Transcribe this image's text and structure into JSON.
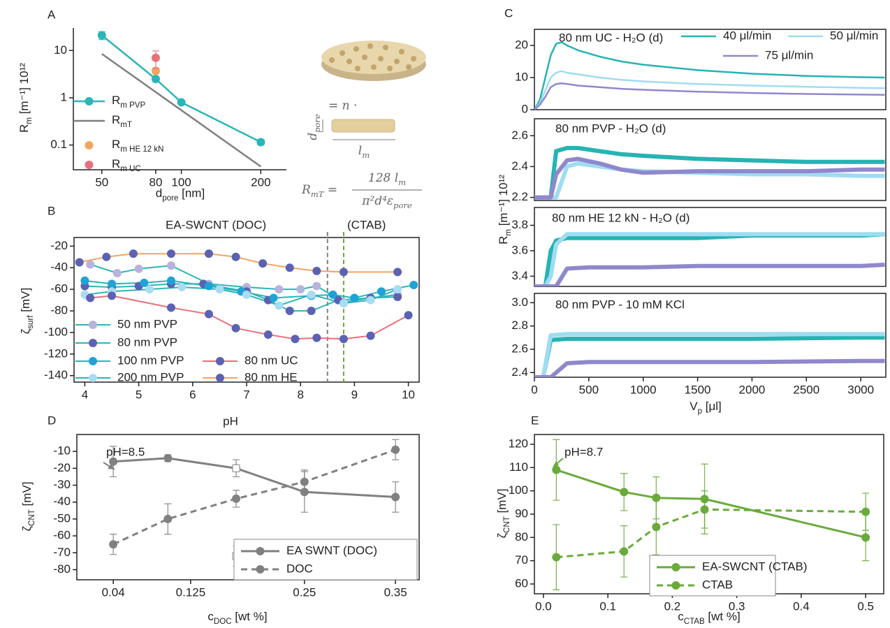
{
  "chart_data": [
    {
      "type": "line",
      "label": "A",
      "xlabel": [
        "d",
        "pore",
        " [nm]"
      ],
      "ylabel": [
        "R",
        "m",
        " [m⁻¹] 10¹²"
      ],
      "xlog": true,
      "ylog": true,
      "xlim": [
        39,
        250
      ],
      "ylim": [
        0.03,
        30
      ],
      "xticks": [
        50,
        80,
        100,
        200
      ],
      "yticks": [
        0.1,
        1,
        10
      ],
      "series": [
        {
          "name": [
            "R",
            "m PVP"
          ],
          "color": "#2bb5b8",
          "marker": "circle",
          "x": [
            50,
            80,
            100,
            200
          ],
          "values": [
            21,
            2.5,
            0.8,
            0.115
          ],
          "errors": [
            4,
            0.3,
            0.08,
            0.015
          ]
        },
        {
          "name": [
            "R",
            "mT"
          ],
          "color": "#7f7f7f",
          "x": [
            50,
            200
          ],
          "values": [
            8.5,
            0.035
          ]
        },
        {
          "name": [
            "R",
            "m HE 12 kN"
          ],
          "color": "#f4a460",
          "marker": "circle",
          "line": false,
          "x": [
            80
          ],
          "values": [
            3.7
          ],
          "errors": [
            0.5
          ]
        },
        {
          "name": [
            "R",
            "m UC"
          ],
          "color": "#e9707a",
          "marker": "circle",
          "line": false,
          "x": [
            80
          ],
          "values": [
            7
          ],
          "errors": [
            2.8
          ]
        }
      ]
    },
    {
      "type": "line",
      "label": "B",
      "xlabel": "pH",
      "ylabel": [
        "ζ",
        "surf",
        " [mV]"
      ],
      "xlim": [
        3.8,
        10.2
      ],
      "ylim": [
        -146,
        -12
      ],
      "xticks": [
        4,
        5,
        6,
        7,
        8,
        9,
        10
      ],
      "yticks": [
        -140,
        -120,
        -100,
        -80,
        -60,
        -40,
        -20
      ],
      "vlines": [
        {
          "x": 8.5,
          "color": "#808080"
        },
        {
          "x": 8.8,
          "color": "#6aaa3a"
        }
      ],
      "annotations": [
        {
          "text": "EA-SWCNT  (DOC)",
          "color": "#808080"
        },
        {
          "text": "(CTAB)",
          "color": "#6aaa3a"
        }
      ],
      "series": [
        {
          "name": "50 nm PVP",
          "color": "#2bb5b8",
          "marker": "circle",
          "marker_color": "#b7b3dc",
          "x": [
            4.1,
            4.6,
            5.0,
            5.6,
            6.3,
            7.0,
            7.6,
            8.0,
            8.3,
            8.8,
            9.3,
            9.8
          ],
          "values": [
            -37,
            -45,
            -41,
            -38,
            -55,
            -58,
            -60,
            -60,
            -57,
            -72,
            -68,
            -65
          ]
        },
        {
          "name": "80 nm PVP",
          "color": "#2bb5b8",
          "marker": "circle",
          "marker_color": "#5b62b3",
          "x": [
            4.0,
            4.5,
            5.0,
            5.6,
            6.2,
            7.0,
            7.4,
            7.8,
            8.2,
            8.7,
            9.3,
            9.8
          ],
          "values": [
            -57,
            -58,
            -57,
            -55,
            -55,
            -62,
            -70,
            -80,
            -80,
            -70,
            -68,
            -67
          ]
        },
        {
          "name": "100 nm PVP",
          "color": "#2bb5b8",
          "marker": "circle",
          "marker_color": "#1fa3d6",
          "x": [
            4.0,
            4.5,
            5.1,
            5.6,
            6.3,
            6.9,
            7.5,
            8.2,
            8.6,
            9.0,
            9.5,
            10.1
          ],
          "values": [
            -52,
            -55,
            -54,
            -52,
            -57,
            -62,
            -68,
            -66,
            -65,
            -68,
            -62,
            -56
          ]
        },
        {
          "name": "200 nm PVP",
          "color": "#2bb5b8",
          "marker": "circle",
          "marker_color": "#a8dcf3",
          "x": [
            4.0,
            4.5,
            5.2,
            5.8,
            6.5,
            7.0,
            7.6,
            8.2,
            8.8,
            9.3,
            9.8
          ],
          "values": [
            -65,
            -62,
            -60,
            -58,
            -60,
            -65,
            -75,
            -65,
            -73,
            -70,
            -60
          ]
        },
        {
          "name": "80 nm UC",
          "color": "#e9707a",
          "marker": "circle",
          "marker_color": "#5b62b3",
          "x": [
            4.1,
            4.5,
            5.6,
            6.3,
            6.8,
            7.4,
            7.9,
            8.3,
            8.8,
            9.3,
            10.0
          ],
          "values": [
            -68,
            -66,
            -77,
            -83,
            -96,
            -102,
            -106,
            -105,
            -106,
            -103,
            -84
          ]
        },
        {
          "name": "80 nm HE",
          "color": "#f4a460",
          "marker": "circle",
          "marker_color": "#5b62b3",
          "x": [
            3.9,
            4.4,
            4.9,
            5.6,
            6.3,
            6.8,
            7.3,
            7.8,
            8.3,
            8.8,
            9.8
          ],
          "values": [
            -35,
            -30,
            -27,
            -27,
            -27,
            -30,
            -36,
            -40,
            -43,
            -44,
            -44
          ]
        }
      ]
    },
    {
      "type": "line",
      "label": "C",
      "title": "80 nm UC - H₂O (d)",
      "title_color": "#e9707a",
      "ylabel": [
        "R",
        "m",
        " [m⁻¹] 10¹²"
      ],
      "xlim": [
        0,
        3230
      ],
      "ylim": [
        0,
        25
      ],
      "yticks": [
        0,
        10,
        20
      ],
      "series": [
        {
          "name": "40 μl/min",
          "color": "#26b3b3",
          "x": [
            0,
            50,
            100,
            150,
            200,
            250,
            300,
            400,
            600,
            800,
            1000,
            1500,
            2000,
            2500,
            3000,
            3220
          ],
          "values": [
            0,
            3,
            10,
            17,
            20.5,
            21,
            20,
            18.5,
            16.5,
            15,
            14,
            12.3,
            11.2,
            10.5,
            10.1,
            10
          ]
        },
        {
          "name": "50 μl/min",
          "color": "#9fdcf2",
          "x": [
            0,
            50,
            100,
            150,
            200,
            250,
            300,
            400,
            600,
            800,
            1000,
            1500,
            2000,
            2500,
            3000,
            3220
          ],
          "values": [
            0,
            2,
            6,
            10,
            11.5,
            12,
            11.5,
            11,
            10,
            9.3,
            8.8,
            8,
            7.5,
            7.1,
            6.8,
            6.7
          ]
        },
        {
          "name": "75 μl/min",
          "color": "#8f88cc",
          "x": [
            0,
            50,
            100,
            150,
            200,
            250,
            300,
            400,
            600,
            800,
            1000,
            1500,
            2000,
            2500,
            3000,
            3220
          ],
          "values": [
            0,
            1.5,
            4,
            7,
            8,
            8.2,
            8,
            7.5,
            7,
            6.5,
            6.2,
            5.6,
            5.2,
            4.9,
            4.7,
            4.6
          ]
        }
      ]
    },
    {
      "type": "line",
      "title": "80 nm PVP - H₂O (d)",
      "title_color": "#26b3b3",
      "xlim": [
        0,
        3230
      ],
      "ylim": [
        2.18,
        2.71
      ],
      "yticks": [
        2.2,
        2.4,
        2.6
      ],
      "series": [
        {
          "color": "#26b3b3",
          "x": [
            0,
            150,
            200,
            300,
            400,
            600,
            800,
            1000,
            1500,
            2000,
            2500,
            3000,
            3220
          ],
          "values": [
            2.2,
            2.2,
            2.5,
            2.52,
            2.52,
            2.5,
            2.48,
            2.47,
            2.45,
            2.44,
            2.43,
            2.43,
            2.43
          ]
        },
        {
          "color": "#9fdcf2",
          "x": [
            0,
            150,
            200,
            300,
            400,
            600,
            800,
            1000,
            1500,
            2000,
            2500,
            3000,
            3220
          ],
          "values": [
            2.2,
            2.2,
            2.2,
            2.4,
            2.42,
            2.4,
            2.38,
            2.37,
            2.36,
            2.35,
            2.35,
            2.34,
            2.34
          ]
        },
        {
          "color": "#8f88cc",
          "x": [
            0,
            150,
            200,
            300,
            400,
            600,
            800,
            1000,
            1500,
            2000,
            2500,
            3000,
            3220
          ],
          "values": [
            2.2,
            2.2,
            2.35,
            2.44,
            2.45,
            2.42,
            2.38,
            2.36,
            2.37,
            2.37,
            2.37,
            2.38,
            2.38
          ]
        }
      ]
    },
    {
      "type": "line",
      "title": "80 nm HE 12 kN - H₂O (d)",
      "title_color": "#f4a460",
      "xlim": [
        0,
        3230
      ],
      "ylim": [
        3.32,
        3.94
      ],
      "yticks": [
        3.4,
        3.6,
        3.8
      ],
      "series": [
        {
          "color": "#26b3b3",
          "x": [
            0,
            100,
            150,
            200,
            300,
            500,
            1000,
            1500,
            2000,
            2500,
            3000,
            3220
          ],
          "values": [
            3.32,
            3.32,
            3.6,
            3.68,
            3.7,
            3.7,
            3.7,
            3.7,
            3.72,
            3.72,
            3.72,
            3.73
          ]
        },
        {
          "color": "#9fdcf2",
          "x": [
            0,
            100,
            150,
            200,
            300,
            500,
            1000,
            1500,
            2000,
            2500,
            3000,
            3220
          ],
          "values": [
            3.32,
            3.32,
            3.4,
            3.65,
            3.73,
            3.73,
            3.73,
            3.73,
            3.73,
            3.73,
            3.73,
            3.73
          ]
        },
        {
          "color": "#8f88cc",
          "x": [
            0,
            100,
            150,
            200,
            300,
            500,
            1000,
            1500,
            2000,
            2500,
            3000,
            3220
          ],
          "values": [
            3.32,
            3.32,
            3.32,
            3.32,
            3.46,
            3.47,
            3.47,
            3.48,
            3.48,
            3.48,
            3.48,
            3.49
          ]
        }
      ]
    },
    {
      "type": "line",
      "title": "80 nm PVP - 10 mM KCl",
      "title_color": "#26b3b3",
      "xlabel": [
        "V",
        "p",
        " [μl]"
      ],
      "xlim": [
        0,
        3230
      ],
      "ylim": [
        2.36,
        3.08
      ],
      "xticks": [
        0,
        500,
        1000,
        1500,
        2000,
        2500,
        3000
      ],
      "yticks": [
        2.4,
        2.6,
        2.8,
        {
          "value": 3,
          "label": "3.0"
        }
      ],
      "series": [
        {
          "color": "#26b3b3",
          "x": [
            0,
            80,
            150,
            300,
            500,
            1000,
            2000,
            3000,
            3220
          ],
          "values": [
            2.36,
            2.36,
            2.68,
            2.69,
            2.69,
            2.69,
            2.69,
            2.7,
            2.7
          ]
        },
        {
          "color": "#9fdcf2",
          "x": [
            0,
            80,
            150,
            300,
            500,
            1000,
            2000,
            3000,
            3220
          ],
          "values": [
            2.36,
            2.36,
            2.72,
            2.73,
            2.73,
            2.73,
            2.73,
            2.73,
            2.73
          ]
        },
        {
          "color": "#8f88cc",
          "x": [
            0,
            80,
            150,
            300,
            500,
            1000,
            2000,
            3000,
            3220
          ],
          "values": [
            2.36,
            2.36,
            2.36,
            2.48,
            2.49,
            2.49,
            2.49,
            2.5,
            2.5
          ]
        }
      ]
    },
    {
      "type": "line",
      "label": "D",
      "xlabel": [
        "c",
        "DOC",
        " [wt %]"
      ],
      "ylabel": [
        "ζ",
        "CNT",
        " [mV]"
      ],
      "xlim": [
        0,
        0.376
      ],
      "ylim": [
        -86,
        0
      ],
      "xticks": [
        0.04,
        0.125,
        0.25,
        0.35
      ],
      "yticks": [
        -80,
        -70,
        -60,
        -50,
        -40,
        -30,
        -20,
        -10
      ],
      "annotations": [
        {
          "text": "pH=8.5",
          "color": "#404040"
        }
      ],
      "series": [
        {
          "name": "EA SWNT (DOC)",
          "color": "#808080",
          "marker": "circle",
          "x": [
            0.04,
            0.1,
            0.175,
            0.25,
            0.35
          ],
          "values": [
            -16,
            -14,
            -20,
            -34,
            -37
          ],
          "errors": [
            9,
            2,
            5,
            12,
            9
          ]
        },
        {
          "name": "DOC",
          "color": "#808080",
          "dashed": true,
          "marker": "circle",
          "x": [
            0.04,
            0.1,
            0.175,
            0.25,
            0.35
          ],
          "values": [
            -65,
            -50,
            -38,
            -28,
            -9
          ],
          "errors": [
            6,
            9,
            5,
            7,
            6
          ]
        },
        {
          "color": "#a0a0a0",
          "marker": "square-open",
          "line": false,
          "x": [
            0.175,
            0.175
          ],
          "values": [
            -20,
            -72
          ],
          "errors": [
            5,
            6
          ]
        }
      ]
    },
    {
      "type": "line",
      "label": "E",
      "xlabel": [
        "c",
        "CTAB",
        " [wt %]"
      ],
      "ylabel": [
        "ζ",
        "CNT",
        " [mV]"
      ],
      "xlim": [
        -0.014,
        0.528
      ],
      "ylim": [
        55.8,
        124.2
      ],
      "xticks": [
        {
          "value": 0,
          "label": "0.0"
        },
        0.1,
        0.2,
        0.3,
        0.4,
        0.5
      ],
      "yticks": [
        60,
        70,
        80,
        90,
        100,
        110,
        120
      ],
      "annotations": [
        {
          "text": "pH=8.7",
          "color": "#6aaa3a"
        }
      ],
      "series": [
        {
          "name": "EA-SWCNT (CTAB)",
          "color": "#6aaa3a",
          "marker": "circle",
          "x": [
            0.02,
            0.125,
            0.175,
            0.25,
            0.5
          ],
          "values": [
            109,
            99.5,
            97,
            96.5,
            80
          ],
          "errors": [
            13,
            8,
            9,
            15,
            10
          ]
        },
        {
          "name": "CTAB",
          "color": "#6aaa3a",
          "dashed": true,
          "marker": "circle",
          "x": [
            0.02,
            0.125,
            0.175,
            0.25,
            0.5
          ],
          "values": [
            71.5,
            74,
            84.5,
            92,
            91
          ],
          "errors": [
            14,
            11,
            12,
            8,
            8
          ]
        }
      ]
    }
  ],
  "diagram": {
    "equals": "= n ·",
    "diameter": [
      "d",
      "pore"
    ],
    "length": [
      "l",
      "m"
    ],
    "formula_lhs": [
      "R",
      "mT",
      " ="
    ],
    "numerator": [
      "128 l",
      "m"
    ],
    "denominator": [
      "π²d⁴ε",
      "pore"
    ]
  }
}
